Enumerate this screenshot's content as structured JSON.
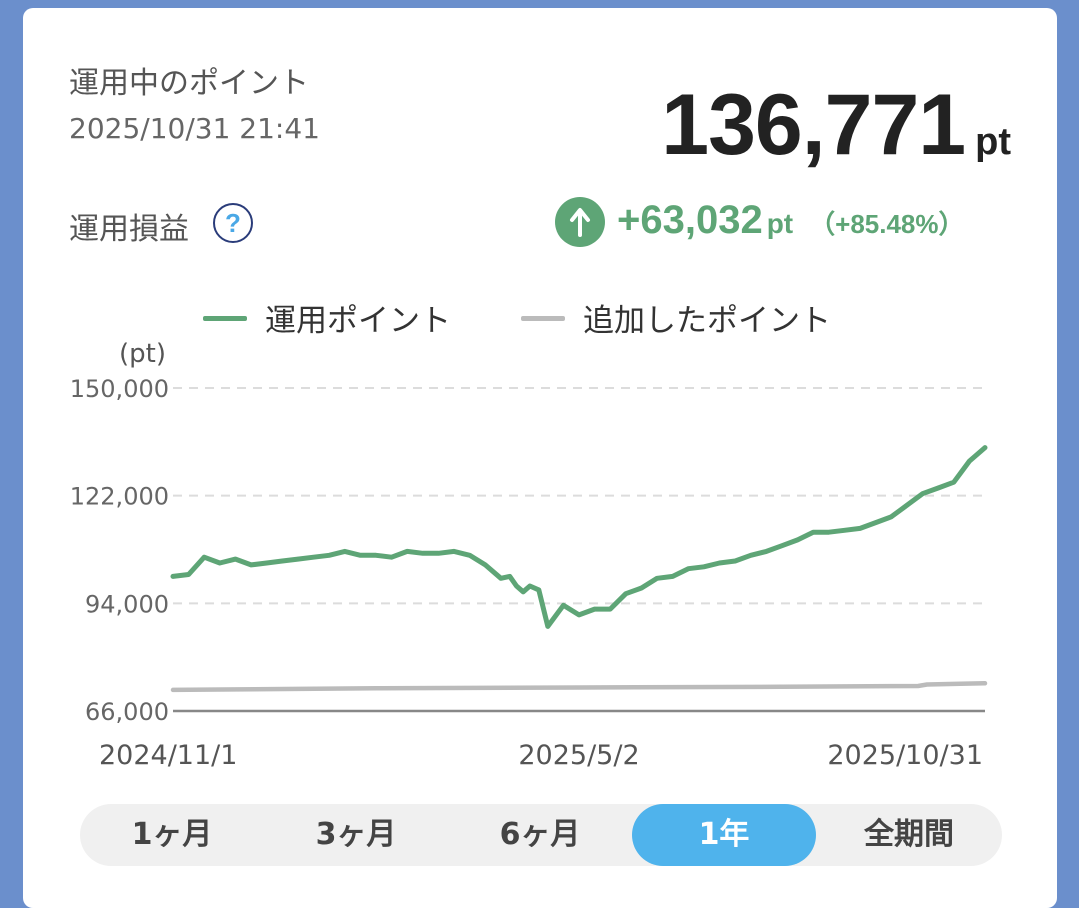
{
  "header": {
    "title": "運用中のポイント",
    "timestamp": "2025/10/31 21:41",
    "total_value": "136,771",
    "total_unit": "pt"
  },
  "profit": {
    "label": "運用損益",
    "help_icon": "question-icon",
    "arrow_icon": "arrow-up-icon",
    "value": "+63,032",
    "unit": "pt",
    "percent": "（+85.48%）",
    "color": "#5ea576"
  },
  "chart_data": {
    "type": "line",
    "ylabel": "(pt)",
    "ylim": [
      66000,
      150000
    ],
    "y_ticks": [
      "150,000",
      "122,000",
      "94,000",
      "66,000"
    ],
    "y_tick_values": [
      150000,
      122000,
      94000,
      66000
    ],
    "x_tick_labels": [
      "2024/11/1",
      "2025/5/2",
      "2025/10/31"
    ],
    "x_range": [
      "2024/11/1",
      "2025/10/31"
    ],
    "grid": true,
    "legend": "top",
    "series": [
      {
        "name": "運用ポイント",
        "color": "#5ea576",
        "x": [
          "2024/11/1",
          "2024/11/8",
          "2024/11/15",
          "2024/11/22",
          "2024/11/29",
          "2024/12/6",
          "2024/12/13",
          "2024/12/20",
          "2024/12/27",
          "2025/1/3",
          "2025/1/10",
          "2025/1/17",
          "2025/1/24",
          "2025/1/31",
          "2025/2/7",
          "2025/2/14",
          "2025/2/21",
          "2025/2/28",
          "2025/3/7",
          "2025/3/14",
          "2025/3/21",
          "2025/3/28",
          "2025/4/1",
          "2025/4/4",
          "2025/4/7",
          "2025/4/10",
          "2025/4/14",
          "2025/4/18",
          "2025/4/25",
          "2025/5/2",
          "2025/5/9",
          "2025/5/16",
          "2025/5/23",
          "2025/5/30",
          "2025/6/6",
          "2025/6/13",
          "2025/6/20",
          "2025/6/27",
          "2025/7/4",
          "2025/7/11",
          "2025/7/18",
          "2025/7/25",
          "2025/8/1",
          "2025/8/8",
          "2025/8/15",
          "2025/8/22",
          "2025/8/29",
          "2025/9/5",
          "2025/9/12",
          "2025/9/19",
          "2025/9/26",
          "2025/10/3",
          "2025/10/10",
          "2025/10/17",
          "2025/10/24",
          "2025/10/31"
        ],
        "y": [
          101000,
          101500,
          106000,
          104500,
          105500,
          104000,
          104500,
          105000,
          105500,
          106000,
          106500,
          107500,
          106500,
          106500,
          106000,
          107500,
          107000,
          107000,
          107500,
          106500,
          104000,
          100500,
          101000,
          98500,
          97000,
          98500,
          97500,
          88000,
          93500,
          91000,
          92500,
          92500,
          96500,
          98000,
          100500,
          101000,
          103000,
          103500,
          104500,
          105000,
          106500,
          107500,
          109000,
          110500,
          112500,
          112500,
          113000,
          113500,
          115000,
          116500,
          119500,
          122500,
          124000,
          125500,
          131000,
          134500
        ]
      },
      {
        "name": "追加したポイント",
        "color": "#bbbbbb",
        "x": [
          "2024/11/1",
          "2025/1/31",
          "2025/5/2",
          "2025/8/1",
          "2025/10/1",
          "2025/10/5",
          "2025/10/20",
          "2025/10/31"
        ],
        "y": [
          71500,
          71900,
          72100,
          72300,
          72500,
          72900,
          73100,
          73200
        ]
      }
    ]
  },
  "tabs": [
    {
      "label": "1ヶ月",
      "active": false
    },
    {
      "label": "3ヶ月",
      "active": false
    },
    {
      "label": "6ヶ月",
      "active": false
    },
    {
      "label": "1年",
      "active": true
    },
    {
      "label": "全期間",
      "active": false
    }
  ]
}
